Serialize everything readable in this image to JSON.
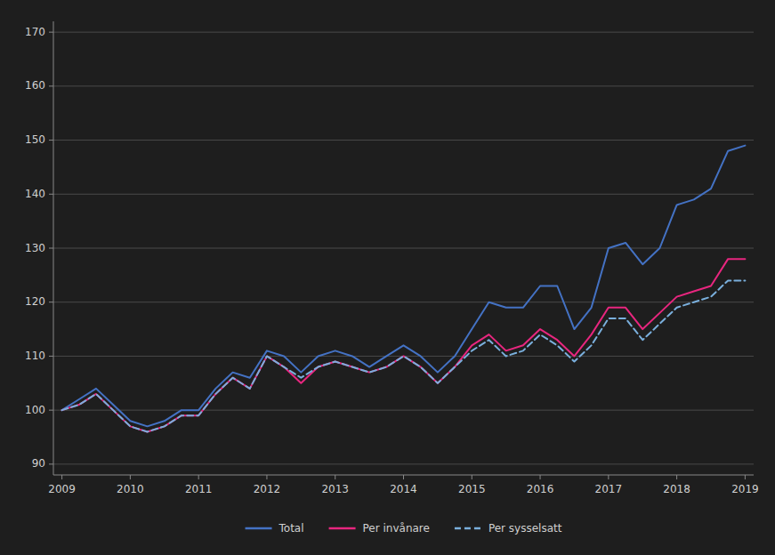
{
  "chart_data": {
    "type": "line",
    "categories": [
      "2009",
      null,
      null,
      null,
      "2010",
      null,
      null,
      null,
      "2011",
      null,
      null,
      null,
      "2012",
      null,
      null,
      null,
      "2013",
      null,
      null,
      null,
      "2014",
      null,
      null,
      null,
      "2015",
      null,
      null,
      null,
      "2016",
      null,
      null,
      null,
      "2017",
      null,
      null,
      null,
      "2018",
      null,
      null,
      null,
      "2019"
    ],
    "series": [
      {
        "name": "Total",
        "color": "#4472c4",
        "line_style": "solid",
        "values": [
          100,
          102,
          104,
          101,
          98,
          97,
          98,
          100,
          100,
          104,
          107,
          106,
          111,
          110,
          107,
          110,
          111,
          110,
          108,
          110,
          112,
          110,
          107,
          110,
          115,
          120,
          119,
          119,
          123,
          123,
          115,
          119,
          130,
          131,
          127,
          130,
          138,
          139,
          141,
          148,
          149
        ]
      },
      {
        "name": "Per invånare",
        "color": "#e8267f",
        "line_style": "solid",
        "values": [
          100,
          101,
          103,
          100,
          97,
          96,
          97,
          99,
          99,
          103,
          106,
          104,
          110,
          108,
          105,
          108,
          109,
          108,
          107,
          108,
          110,
          108,
          105,
          108,
          112,
          114,
          111,
          112,
          115,
          113,
          110,
          114,
          119,
          119,
          115,
          118,
          121,
          122,
          123,
          128,
          128
        ]
      },
      {
        "name": "Per sysselsatt",
        "color": "#7aafdc",
        "line_style": "dashed",
        "values": [
          100,
          101,
          103,
          100,
          97,
          96,
          97,
          99,
          99,
          103,
          106,
          104,
          110,
          108,
          106,
          108,
          109,
          108,
          107,
          108,
          110,
          108,
          105,
          108,
          111,
          113,
          110,
          111,
          114,
          112,
          109,
          112,
          117,
          117,
          113,
          116,
          119,
          120,
          121,
          124,
          124
        ]
      }
    ],
    "ylim": [
      88,
      172
    ],
    "yticks": [
      90,
      100,
      110,
      120,
      130,
      140,
      150,
      160,
      170
    ],
    "grid": true,
    "legend": "bottom"
  }
}
